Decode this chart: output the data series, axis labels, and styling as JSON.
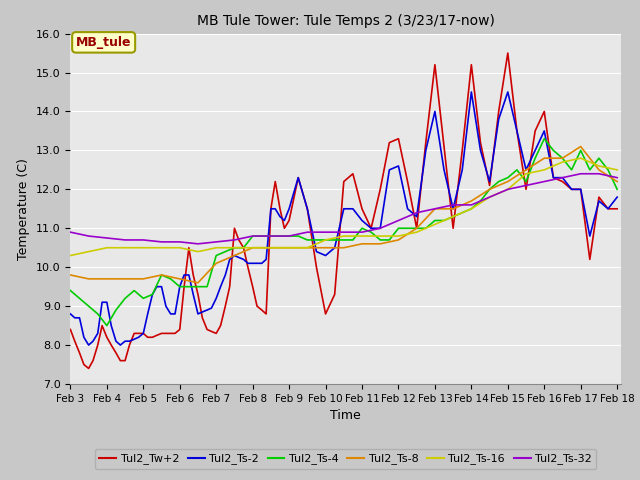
{
  "title": "MB Tule Tower: Tule Temps 2 (3/23/17-now)",
  "xlabel": "Time",
  "ylabel": "Temperature (C)",
  "ylim": [
    7.0,
    16.0
  ],
  "yticks": [
    7.0,
    8.0,
    9.0,
    10.0,
    11.0,
    12.0,
    13.0,
    14.0,
    15.0,
    16.0
  ],
  "xtick_labels": [
    "Feb 3",
    "Feb 4",
    "Feb 5",
    "Feb 6",
    "Feb 7",
    "Feb 8",
    "Feb 9",
    "Feb 10",
    "Feb 11",
    "Feb 12",
    "Feb 13",
    "Feb 14",
    "Feb 15",
    "Feb 16",
    "Feb 17",
    "Feb 18"
  ],
  "fig_bg_color": "#c8c8c8",
  "plot_bg_color": "#e8e8e8",
  "grid_color": "#ffffff",
  "annotation_text": "MB_tule",
  "annotation_bg": "#ffffcc",
  "annotation_border": "#999900",
  "annotation_text_color": "#990000",
  "legend_entries": [
    {
      "name": "Tul2_Tw+2",
      "color": "#cc0000"
    },
    {
      "name": "Tul2_Ts-2",
      "color": "#0000dd"
    },
    {
      "name": "Tul2_Ts-4",
      "color": "#00cc00"
    },
    {
      "name": "Tul2_Ts-8",
      "color": "#dd8800"
    },
    {
      "name": "Tul2_Ts-16",
      "color": "#cccc00"
    },
    {
      "name": "Tul2_Ts-32",
      "color": "#9900cc"
    }
  ],
  "series": [
    {
      "name": "Tul2_Tw+2",
      "color": "#cc0000",
      "lw": 1.2,
      "x": [
        0.0,
        0.12,
        0.25,
        0.37,
        0.5,
        0.62,
        0.75,
        0.87,
        1.0,
        1.12,
        1.25,
        1.37,
        1.5,
        1.62,
        1.75,
        1.87,
        2.0,
        2.12,
        2.25,
        2.37,
        2.5,
        2.62,
        2.75,
        2.87,
        3.0,
        3.12,
        3.25,
        3.37,
        3.5,
        3.62,
        3.75,
        3.87,
        4.0,
        4.12,
        4.25,
        4.37,
        4.5,
        4.62,
        4.75,
        4.87,
        5.0,
        5.12,
        5.25,
        5.37,
        5.5,
        5.62,
        5.75,
        5.87,
        6.0,
        6.25,
        6.5,
        6.75,
        7.0,
        7.25,
        7.5,
        7.75,
        8.0,
        8.25,
        8.5,
        8.75,
        9.0,
        9.25,
        9.5,
        9.75,
        10.0,
        10.25,
        10.5,
        10.75,
        11.0,
        11.25,
        11.5,
        11.75,
        12.0,
        12.25,
        12.5,
        12.75,
        13.0,
        13.25,
        13.5,
        13.75,
        14.0,
        14.25,
        14.5,
        14.75,
        15.0
      ],
      "y": [
        8.4,
        8.1,
        7.8,
        7.5,
        7.4,
        7.6,
        8.0,
        8.5,
        8.2,
        8.0,
        7.8,
        7.6,
        7.6,
        8.0,
        8.3,
        8.3,
        8.3,
        8.2,
        8.2,
        8.25,
        8.3,
        8.3,
        8.3,
        8.3,
        8.4,
        9.5,
        10.5,
        9.8,
        9.3,
        8.7,
        8.4,
        8.35,
        8.3,
        8.5,
        9.0,
        9.5,
        11.0,
        10.7,
        10.5,
        10.0,
        9.5,
        9.0,
        8.9,
        8.8,
        11.5,
        12.2,
        11.5,
        11.0,
        11.2,
        12.3,
        11.5,
        10.0,
        8.8,
        9.3,
        12.2,
        12.4,
        11.5,
        11.0,
        12.0,
        13.2,
        13.3,
        12.2,
        11.0,
        13.2,
        15.2,
        13.1,
        11.0,
        13.0,
        15.2,
        13.2,
        12.1,
        14.0,
        15.5,
        13.5,
        12.0,
        13.5,
        14.0,
        12.3,
        12.2,
        12.0,
        12.0,
        10.2,
        11.8,
        11.5,
        11.5
      ]
    },
    {
      "name": "Tul2_Ts-2",
      "color": "#0000dd",
      "lw": 1.2,
      "x": [
        0.0,
        0.12,
        0.25,
        0.37,
        0.5,
        0.62,
        0.75,
        0.87,
        1.0,
        1.12,
        1.25,
        1.37,
        1.5,
        1.62,
        1.75,
        1.87,
        2.0,
        2.12,
        2.25,
        2.37,
        2.5,
        2.62,
        2.75,
        2.87,
        3.0,
        3.12,
        3.25,
        3.37,
        3.5,
        3.62,
        3.75,
        3.87,
        4.0,
        4.12,
        4.25,
        4.37,
        4.5,
        4.62,
        4.75,
        4.87,
        5.0,
        5.12,
        5.25,
        5.37,
        5.5,
        5.62,
        5.75,
        5.87,
        6.0,
        6.25,
        6.5,
        6.75,
        7.0,
        7.25,
        7.5,
        7.75,
        8.0,
        8.25,
        8.5,
        8.75,
        9.0,
        9.25,
        9.5,
        9.75,
        10.0,
        10.25,
        10.5,
        10.75,
        11.0,
        11.25,
        11.5,
        11.75,
        12.0,
        12.25,
        12.5,
        12.75,
        13.0,
        13.25,
        13.5,
        13.75,
        14.0,
        14.25,
        14.5,
        14.75,
        15.0
      ],
      "y": [
        8.8,
        8.7,
        8.7,
        8.2,
        8.0,
        8.1,
        8.3,
        9.1,
        9.1,
        8.5,
        8.1,
        8.0,
        8.1,
        8.1,
        8.15,
        8.2,
        8.3,
        8.8,
        9.3,
        9.5,
        9.5,
        9.0,
        8.8,
        8.8,
        9.5,
        9.8,
        9.8,
        9.3,
        8.8,
        8.85,
        8.9,
        8.95,
        9.2,
        9.5,
        9.8,
        10.2,
        10.3,
        10.25,
        10.2,
        10.1,
        10.1,
        10.1,
        10.1,
        10.2,
        11.5,
        11.5,
        11.3,
        11.2,
        11.5,
        12.3,
        11.5,
        10.4,
        10.3,
        10.5,
        11.5,
        11.5,
        11.2,
        11.0,
        11.0,
        12.5,
        12.6,
        11.5,
        11.3,
        13.0,
        14.0,
        12.5,
        11.5,
        12.5,
        14.5,
        13.0,
        12.2,
        13.8,
        14.5,
        13.5,
        12.5,
        13.0,
        13.5,
        12.3,
        12.3,
        12.0,
        12.0,
        10.8,
        11.7,
        11.5,
        11.8
      ]
    },
    {
      "name": "Tul2_Ts-4",
      "color": "#00cc00",
      "lw": 1.2,
      "x": [
        0.0,
        0.25,
        0.5,
        0.75,
        1.0,
        1.25,
        1.5,
        1.75,
        2.0,
        2.25,
        2.5,
        2.75,
        3.0,
        3.25,
        3.5,
        3.75,
        4.0,
        4.25,
        4.5,
        4.75,
        5.0,
        5.25,
        5.5,
        5.75,
        6.0,
        6.25,
        6.5,
        6.75,
        7.0,
        7.25,
        7.5,
        7.75,
        8.0,
        8.25,
        8.5,
        8.75,
        9.0,
        9.25,
        9.5,
        9.75,
        10.0,
        10.25,
        10.5,
        10.75,
        11.0,
        11.25,
        11.5,
        11.75,
        12.0,
        12.25,
        12.5,
        12.75,
        13.0,
        13.25,
        13.5,
        13.75,
        14.0,
        14.25,
        14.5,
        14.75,
        15.0
      ],
      "y": [
        9.4,
        9.2,
        9.0,
        8.8,
        8.5,
        8.9,
        9.2,
        9.4,
        9.2,
        9.3,
        9.8,
        9.7,
        9.5,
        9.5,
        9.5,
        9.5,
        10.3,
        10.4,
        10.5,
        10.5,
        10.8,
        10.8,
        10.8,
        10.8,
        10.8,
        10.8,
        10.7,
        10.7,
        10.7,
        10.7,
        10.7,
        10.7,
        11.0,
        10.9,
        10.7,
        10.7,
        11.0,
        11.0,
        11.0,
        11.0,
        11.2,
        11.2,
        11.3,
        11.4,
        11.5,
        11.7,
        12.0,
        12.2,
        12.3,
        12.5,
        12.2,
        12.8,
        13.3,
        13.0,
        12.8,
        12.5,
        13.0,
        12.5,
        12.8,
        12.5,
        12.0
      ]
    },
    {
      "name": "Tul2_Ts-8",
      "color": "#dd8800",
      "lw": 1.2,
      "x": [
        0.0,
        0.5,
        1.0,
        1.5,
        2.0,
        2.5,
        3.0,
        3.5,
        4.0,
        4.5,
        5.0,
        5.5,
        6.0,
        6.5,
        7.0,
        7.5,
        8.0,
        8.5,
        9.0,
        9.5,
        10.0,
        10.5,
        11.0,
        11.5,
        12.0,
        12.5,
        13.0,
        13.5,
        14.0,
        14.5,
        15.0
      ],
      "y": [
        9.8,
        9.7,
        9.7,
        9.7,
        9.7,
        9.8,
        9.7,
        9.6,
        10.1,
        10.3,
        10.5,
        10.5,
        10.5,
        10.5,
        10.5,
        10.5,
        10.6,
        10.6,
        10.7,
        11.0,
        11.5,
        11.5,
        11.7,
        12.0,
        12.2,
        12.5,
        12.8,
        12.8,
        13.1,
        12.5,
        12.2
      ]
    },
    {
      "name": "Tul2_Ts-16",
      "color": "#cccc00",
      "lw": 1.2,
      "x": [
        0.0,
        0.5,
        1.0,
        1.5,
        2.0,
        2.5,
        3.0,
        3.5,
        4.0,
        4.5,
        5.0,
        5.5,
        6.0,
        6.5,
        7.0,
        7.5,
        8.0,
        8.5,
        9.0,
        9.5,
        10.0,
        10.5,
        11.0,
        11.5,
        12.0,
        12.5,
        13.0,
        13.5,
        14.0,
        14.5,
        15.0
      ],
      "y": [
        10.3,
        10.4,
        10.5,
        10.5,
        10.5,
        10.5,
        10.5,
        10.4,
        10.5,
        10.5,
        10.5,
        10.5,
        10.5,
        10.5,
        10.7,
        10.8,
        10.8,
        10.8,
        10.8,
        10.9,
        11.1,
        11.3,
        11.5,
        11.8,
        12.0,
        12.4,
        12.5,
        12.7,
        12.8,
        12.6,
        12.5
      ]
    },
    {
      "name": "Tul2_Ts-32",
      "color": "#9900cc",
      "lw": 1.2,
      "x": [
        0.0,
        0.5,
        1.0,
        1.5,
        2.0,
        2.5,
        3.0,
        3.5,
        4.0,
        4.5,
        5.0,
        5.5,
        6.0,
        6.5,
        7.0,
        7.5,
        8.0,
        8.5,
        9.0,
        9.5,
        10.0,
        10.5,
        11.0,
        11.5,
        12.0,
        12.5,
        13.0,
        13.5,
        14.0,
        14.5,
        15.0
      ],
      "y": [
        10.9,
        10.8,
        10.75,
        10.7,
        10.7,
        10.65,
        10.65,
        10.6,
        10.65,
        10.7,
        10.8,
        10.8,
        10.8,
        10.9,
        10.9,
        10.9,
        10.9,
        11.0,
        11.2,
        11.4,
        11.5,
        11.6,
        11.6,
        11.8,
        12.0,
        12.1,
        12.2,
        12.3,
        12.4,
        12.4,
        12.3
      ]
    }
  ],
  "xtick_positions": [
    0,
    1,
    2,
    3,
    4,
    5,
    6,
    7,
    8,
    9,
    10,
    11,
    12,
    13,
    14,
    15
  ],
  "xlim": [
    0,
    15.1
  ]
}
